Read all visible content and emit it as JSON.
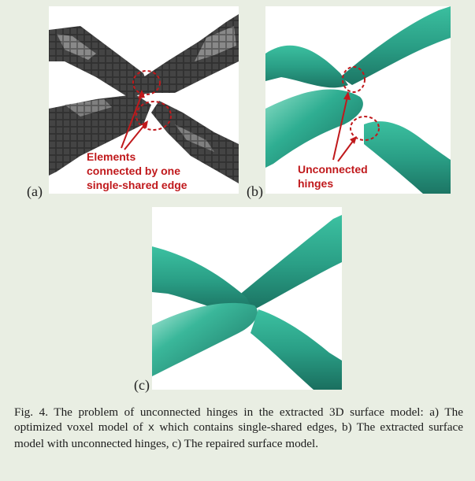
{
  "panels": {
    "a": {
      "label": "(a)",
      "annotation_lines": [
        "Elements",
        "connected by one",
        "single-shared edge"
      ]
    },
    "b": {
      "label": "(b)",
      "annotation_lines": [
        "Unconnected",
        "hinges"
      ]
    },
    "c": {
      "label": "(c)"
    }
  },
  "caption": {
    "lead": "Fig. 4.  The problem of unconnected hinges in the extracted 3D surface model: a) The optimized voxel model of",
    "variable": "x",
    "rest": "which contains single-shared edges, b) The extracted surface model with unconnected hinges, c) The repaired surface model."
  },
  "colors": {
    "background": "#e9eee3",
    "annotation_red": "#c0191c",
    "voxel_dark": "#3a3a3a",
    "surface_teal": "#2aa58c"
  },
  "icons": [
    "dashed-circle-marker",
    "red-arrow"
  ]
}
